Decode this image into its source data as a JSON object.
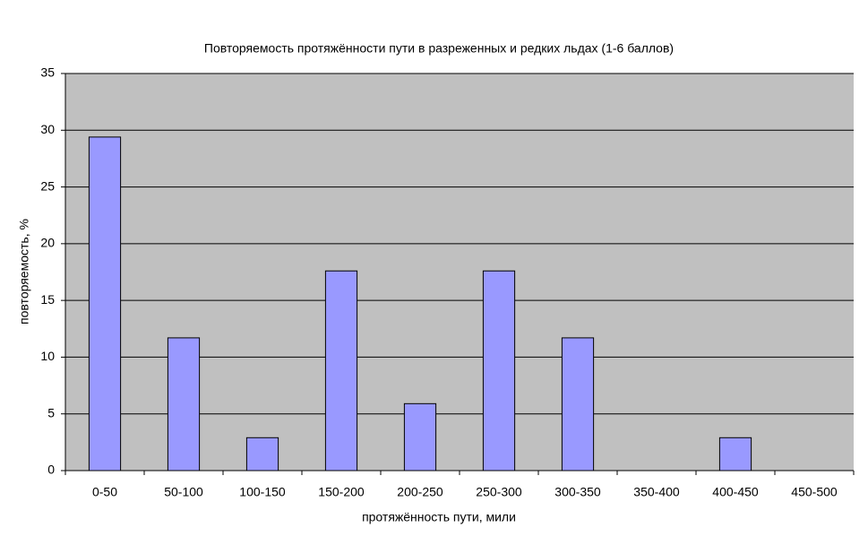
{
  "chart_data": {
    "type": "bar",
    "title": "Повторяемость протяжённости пути в разреженных и редких льдах (1-6 баллов)",
    "x_label": "протяжённость пути, мили",
    "y_label": "повторяемость, %",
    "categories": [
      "0-50",
      "50-100",
      "100-150",
      "150-200",
      "200-250",
      "250-300",
      "300-350",
      "350-400",
      "400-450",
      "450-500"
    ],
    "values": [
      29.4,
      11.7,
      2.9,
      17.6,
      5.9,
      17.6,
      11.7,
      0,
      2.9,
      0
    ],
    "color": "#9999ff",
    "ylim": [
      0,
      35
    ],
    "yticks": [
      0,
      5,
      10,
      15,
      20,
      25,
      30,
      35
    ],
    "grid": true
  }
}
